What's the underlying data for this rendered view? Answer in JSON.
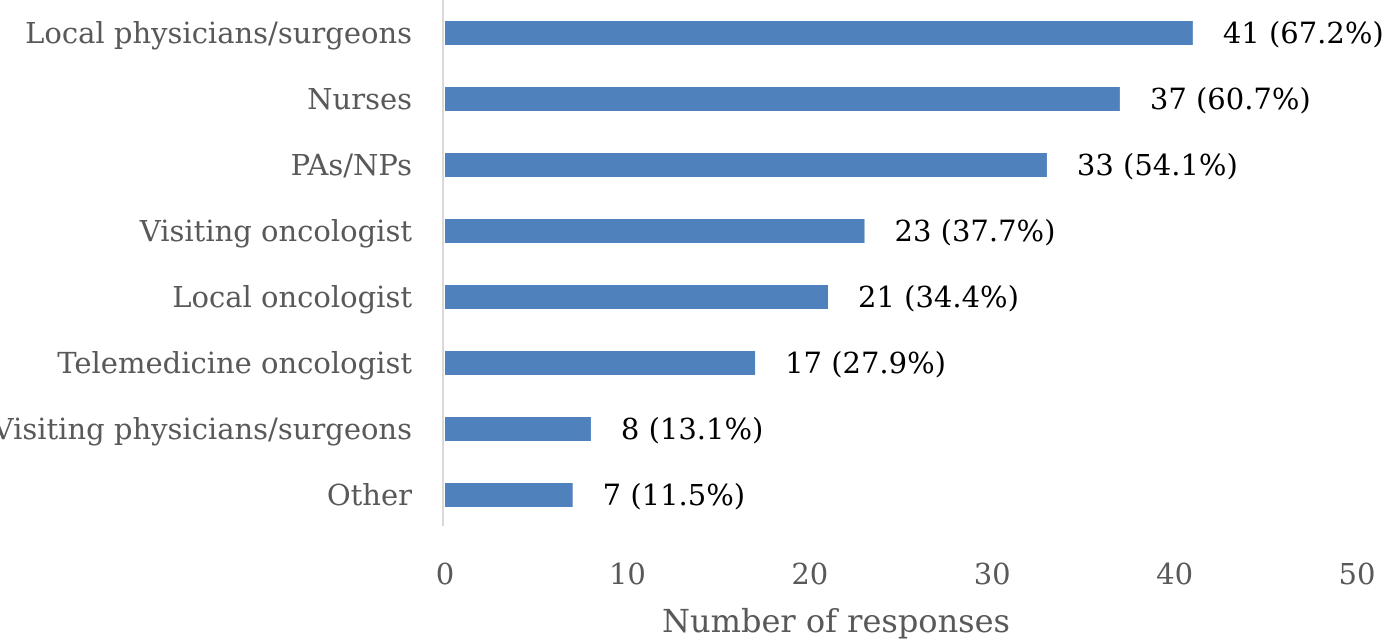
{
  "chart_data": {
    "type": "bar",
    "orientation": "horizontal",
    "title": "",
    "xlabel": "Number of responses",
    "ylabel": "",
    "xlim": [
      0,
      50
    ],
    "xticks": [
      0,
      10,
      20,
      30,
      40,
      50
    ],
    "grid": false,
    "legend": "none",
    "bar_color": "#4F81BD",
    "categories": [
      "Local physicians/surgeons",
      "Nurses",
      "PAs/NPs",
      "Visiting oncologist",
      "Local oncologist",
      "Telemedicine oncologist",
      "Visiting physicians/surgeons",
      "Other"
    ],
    "values": [
      41,
      37,
      33,
      23,
      21,
      17,
      8,
      7
    ],
    "data_labels": [
      "41 (67.2%)",
      "37 (60.7%)",
      "33 (54.1%)",
      "23 (37.7%)",
      "21 (34.4%)",
      "17 (27.9%)",
      "8 (13.1%)",
      "7 (11.5%)"
    ]
  }
}
